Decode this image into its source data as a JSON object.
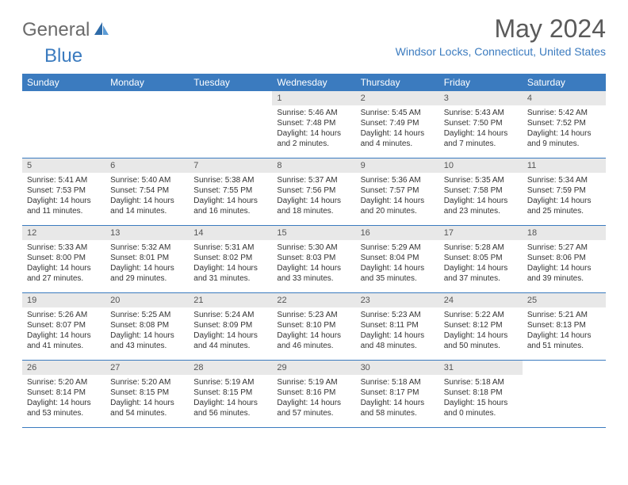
{
  "logo": {
    "text1": "General",
    "text2": "Blue"
  },
  "title": "May 2024",
  "location": "Windsor Locks, Connecticut, United States",
  "day_headers": [
    "Sunday",
    "Monday",
    "Tuesday",
    "Wednesday",
    "Thursday",
    "Friday",
    "Saturday"
  ],
  "colors": {
    "header_bg": "#3b7bbf",
    "daynum_bg": "#e8e8e8",
    "text": "#333333",
    "logo_gray": "#6b6b6b",
    "logo_blue": "#3b7bbf"
  },
  "weeks": [
    [
      null,
      null,
      null,
      {
        "n": "1",
        "sr": "Sunrise: 5:46 AM",
        "ss": "Sunset: 7:48 PM",
        "dl1": "Daylight: 14 hours",
        "dl2": "and 2 minutes."
      },
      {
        "n": "2",
        "sr": "Sunrise: 5:45 AM",
        "ss": "Sunset: 7:49 PM",
        "dl1": "Daylight: 14 hours",
        "dl2": "and 4 minutes."
      },
      {
        "n": "3",
        "sr": "Sunrise: 5:43 AM",
        "ss": "Sunset: 7:50 PM",
        "dl1": "Daylight: 14 hours",
        "dl2": "and 7 minutes."
      },
      {
        "n": "4",
        "sr": "Sunrise: 5:42 AM",
        "ss": "Sunset: 7:52 PM",
        "dl1": "Daylight: 14 hours",
        "dl2": "and 9 minutes."
      }
    ],
    [
      {
        "n": "5",
        "sr": "Sunrise: 5:41 AM",
        "ss": "Sunset: 7:53 PM",
        "dl1": "Daylight: 14 hours",
        "dl2": "and 11 minutes."
      },
      {
        "n": "6",
        "sr": "Sunrise: 5:40 AM",
        "ss": "Sunset: 7:54 PM",
        "dl1": "Daylight: 14 hours",
        "dl2": "and 14 minutes."
      },
      {
        "n": "7",
        "sr": "Sunrise: 5:38 AM",
        "ss": "Sunset: 7:55 PM",
        "dl1": "Daylight: 14 hours",
        "dl2": "and 16 minutes."
      },
      {
        "n": "8",
        "sr": "Sunrise: 5:37 AM",
        "ss": "Sunset: 7:56 PM",
        "dl1": "Daylight: 14 hours",
        "dl2": "and 18 minutes."
      },
      {
        "n": "9",
        "sr": "Sunrise: 5:36 AM",
        "ss": "Sunset: 7:57 PM",
        "dl1": "Daylight: 14 hours",
        "dl2": "and 20 minutes."
      },
      {
        "n": "10",
        "sr": "Sunrise: 5:35 AM",
        "ss": "Sunset: 7:58 PM",
        "dl1": "Daylight: 14 hours",
        "dl2": "and 23 minutes."
      },
      {
        "n": "11",
        "sr": "Sunrise: 5:34 AM",
        "ss": "Sunset: 7:59 PM",
        "dl1": "Daylight: 14 hours",
        "dl2": "and 25 minutes."
      }
    ],
    [
      {
        "n": "12",
        "sr": "Sunrise: 5:33 AM",
        "ss": "Sunset: 8:00 PM",
        "dl1": "Daylight: 14 hours",
        "dl2": "and 27 minutes."
      },
      {
        "n": "13",
        "sr": "Sunrise: 5:32 AM",
        "ss": "Sunset: 8:01 PM",
        "dl1": "Daylight: 14 hours",
        "dl2": "and 29 minutes."
      },
      {
        "n": "14",
        "sr": "Sunrise: 5:31 AM",
        "ss": "Sunset: 8:02 PM",
        "dl1": "Daylight: 14 hours",
        "dl2": "and 31 minutes."
      },
      {
        "n": "15",
        "sr": "Sunrise: 5:30 AM",
        "ss": "Sunset: 8:03 PM",
        "dl1": "Daylight: 14 hours",
        "dl2": "and 33 minutes."
      },
      {
        "n": "16",
        "sr": "Sunrise: 5:29 AM",
        "ss": "Sunset: 8:04 PM",
        "dl1": "Daylight: 14 hours",
        "dl2": "and 35 minutes."
      },
      {
        "n": "17",
        "sr": "Sunrise: 5:28 AM",
        "ss": "Sunset: 8:05 PM",
        "dl1": "Daylight: 14 hours",
        "dl2": "and 37 minutes."
      },
      {
        "n": "18",
        "sr": "Sunrise: 5:27 AM",
        "ss": "Sunset: 8:06 PM",
        "dl1": "Daylight: 14 hours",
        "dl2": "and 39 minutes."
      }
    ],
    [
      {
        "n": "19",
        "sr": "Sunrise: 5:26 AM",
        "ss": "Sunset: 8:07 PM",
        "dl1": "Daylight: 14 hours",
        "dl2": "and 41 minutes."
      },
      {
        "n": "20",
        "sr": "Sunrise: 5:25 AM",
        "ss": "Sunset: 8:08 PM",
        "dl1": "Daylight: 14 hours",
        "dl2": "and 43 minutes."
      },
      {
        "n": "21",
        "sr": "Sunrise: 5:24 AM",
        "ss": "Sunset: 8:09 PM",
        "dl1": "Daylight: 14 hours",
        "dl2": "and 44 minutes."
      },
      {
        "n": "22",
        "sr": "Sunrise: 5:23 AM",
        "ss": "Sunset: 8:10 PM",
        "dl1": "Daylight: 14 hours",
        "dl2": "and 46 minutes."
      },
      {
        "n": "23",
        "sr": "Sunrise: 5:23 AM",
        "ss": "Sunset: 8:11 PM",
        "dl1": "Daylight: 14 hours",
        "dl2": "and 48 minutes."
      },
      {
        "n": "24",
        "sr": "Sunrise: 5:22 AM",
        "ss": "Sunset: 8:12 PM",
        "dl1": "Daylight: 14 hours",
        "dl2": "and 50 minutes."
      },
      {
        "n": "25",
        "sr": "Sunrise: 5:21 AM",
        "ss": "Sunset: 8:13 PM",
        "dl1": "Daylight: 14 hours",
        "dl2": "and 51 minutes."
      }
    ],
    [
      {
        "n": "26",
        "sr": "Sunrise: 5:20 AM",
        "ss": "Sunset: 8:14 PM",
        "dl1": "Daylight: 14 hours",
        "dl2": "and 53 minutes."
      },
      {
        "n": "27",
        "sr": "Sunrise: 5:20 AM",
        "ss": "Sunset: 8:15 PM",
        "dl1": "Daylight: 14 hours",
        "dl2": "and 54 minutes."
      },
      {
        "n": "28",
        "sr": "Sunrise: 5:19 AM",
        "ss": "Sunset: 8:15 PM",
        "dl1": "Daylight: 14 hours",
        "dl2": "and 56 minutes."
      },
      {
        "n": "29",
        "sr": "Sunrise: 5:19 AM",
        "ss": "Sunset: 8:16 PM",
        "dl1": "Daylight: 14 hours",
        "dl2": "and 57 minutes."
      },
      {
        "n": "30",
        "sr": "Sunrise: 5:18 AM",
        "ss": "Sunset: 8:17 PM",
        "dl1": "Daylight: 14 hours",
        "dl2": "and 58 minutes."
      },
      {
        "n": "31",
        "sr": "Sunrise: 5:18 AM",
        "ss": "Sunset: 8:18 PM",
        "dl1": "Daylight: 15 hours",
        "dl2": "and 0 minutes."
      },
      null
    ]
  ]
}
